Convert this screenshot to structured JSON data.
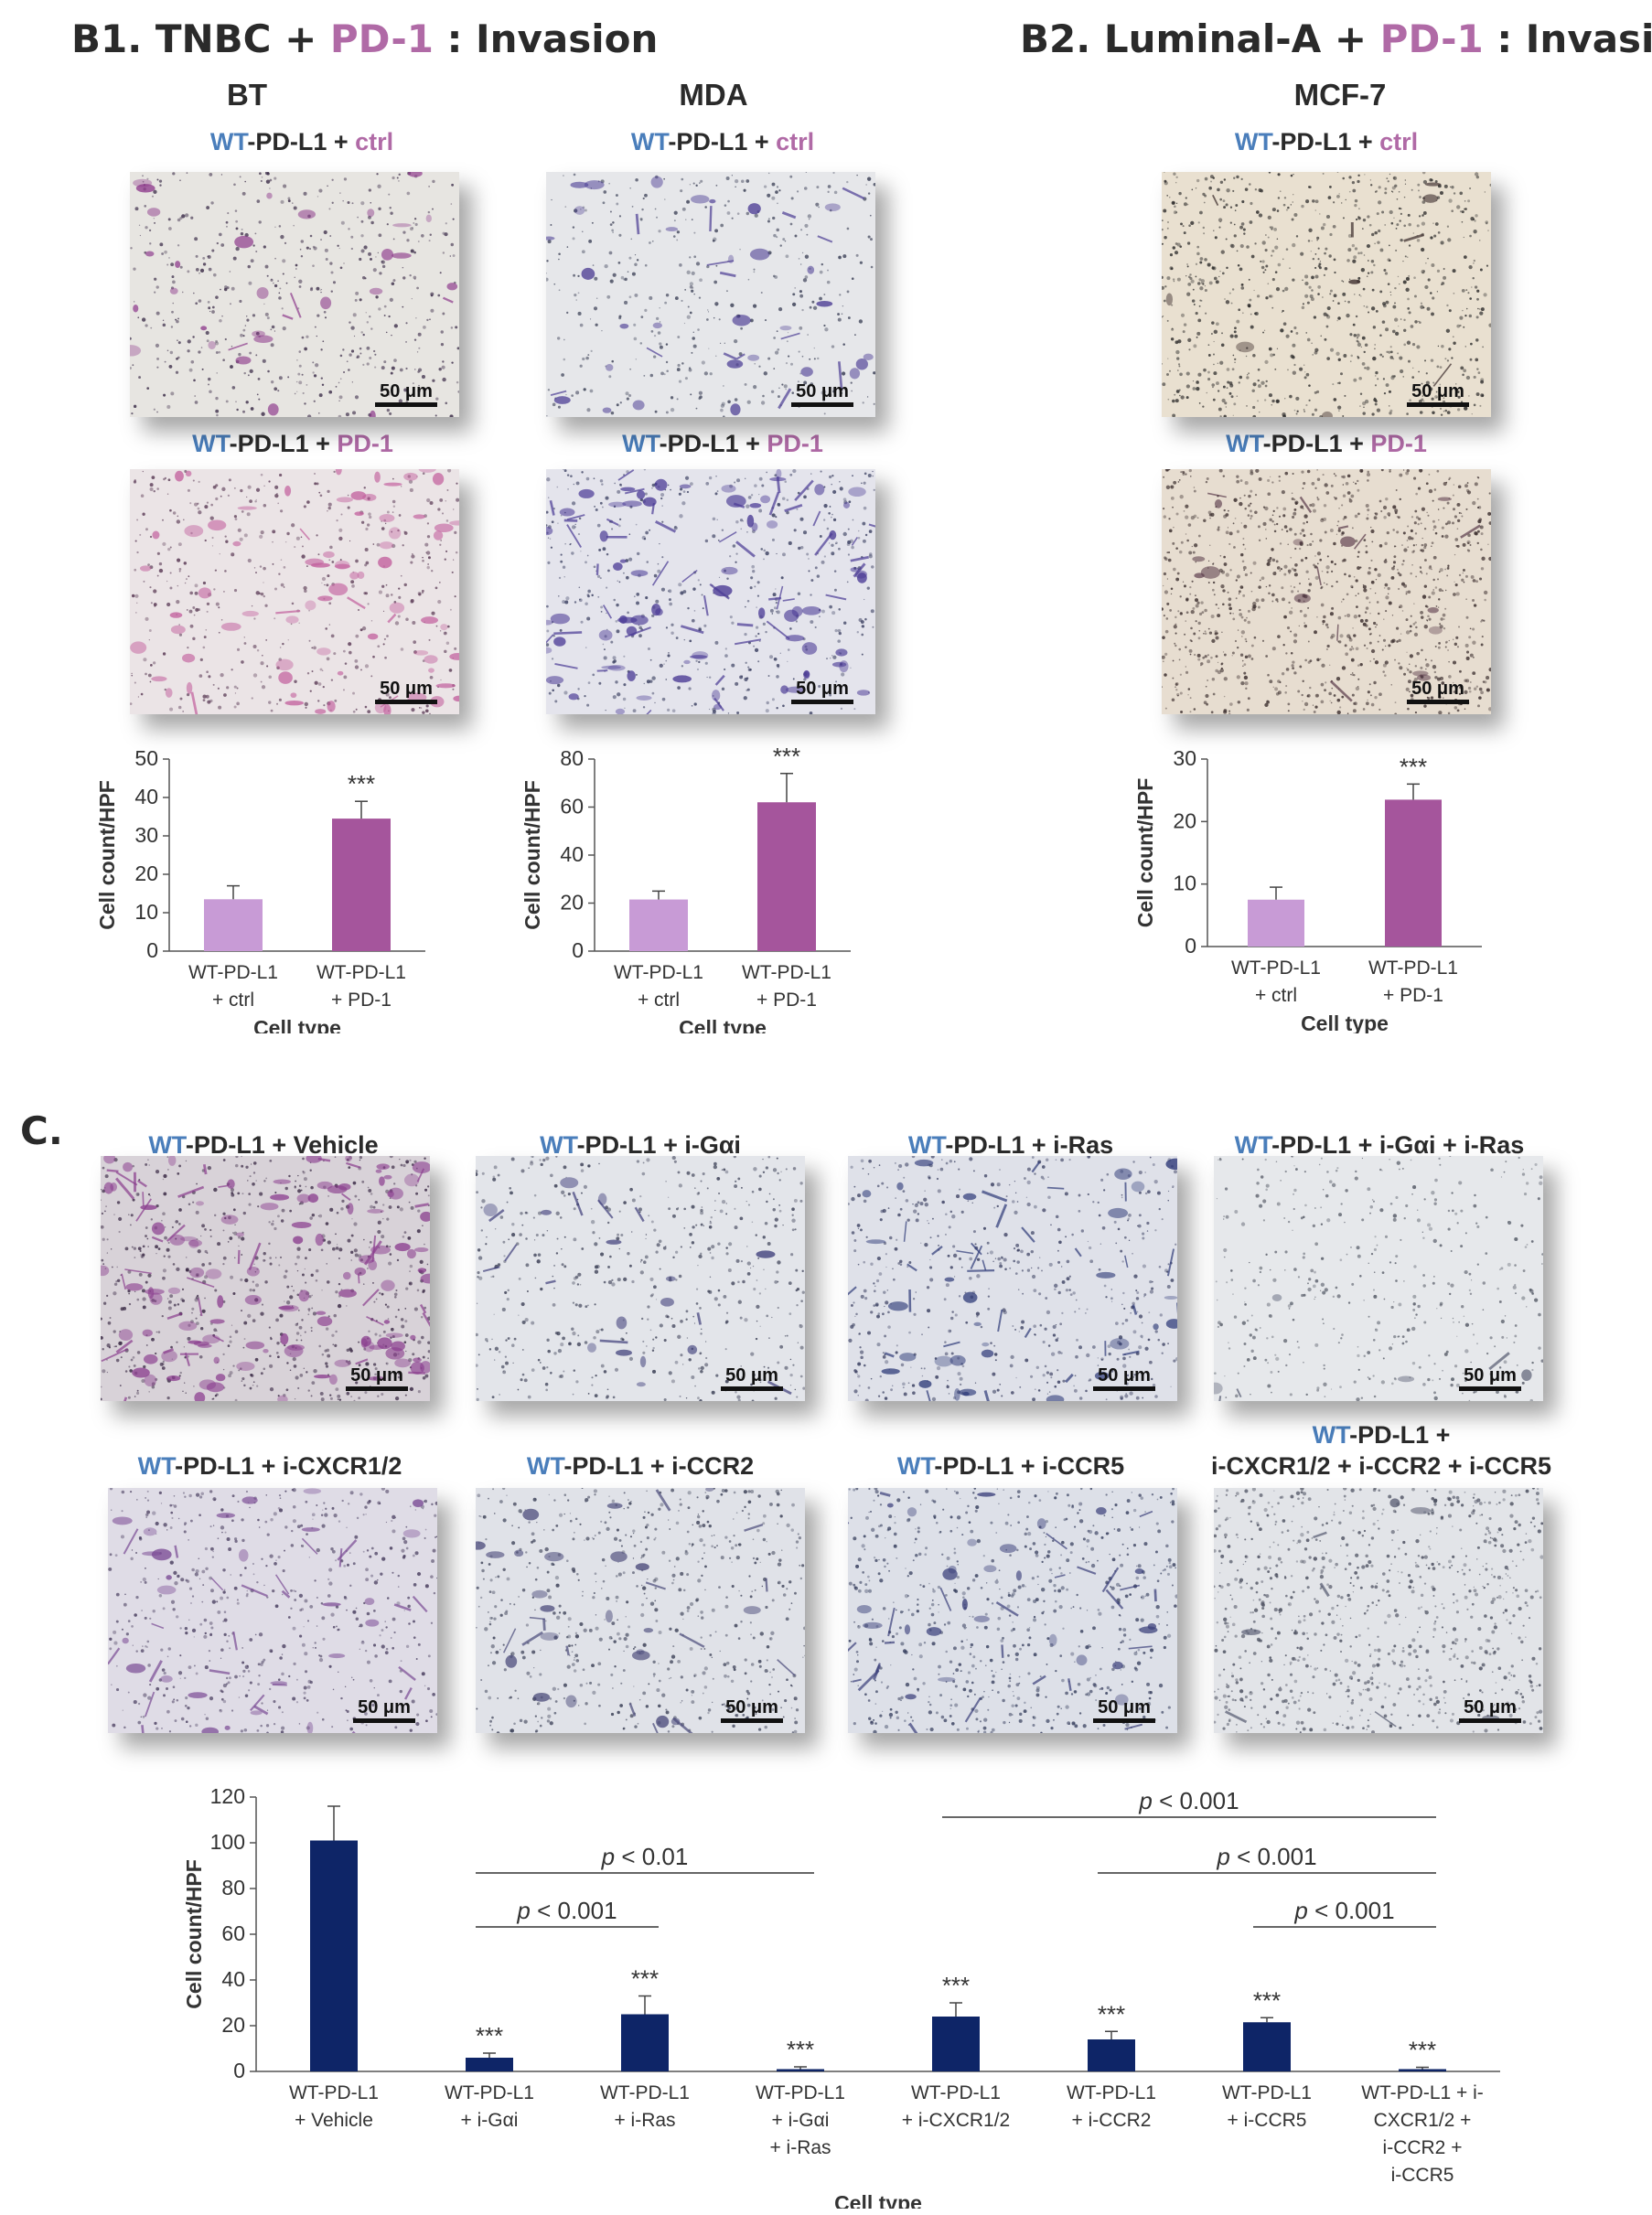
{
  "panels": {
    "b1": {
      "prefix": "B1. TNBC + ",
      "highlight": "PD-1",
      "suffix": " : Invasion"
    },
    "b2": {
      "prefix": "B2. Luminal-A + ",
      "highlight": "PD-1",
      "suffix": " : Invasion"
    },
    "c": {
      "label": "C."
    }
  },
  "columns": {
    "bt": "BT",
    "mda": "MDA",
    "mcf7": "MCF-7"
  },
  "labels": {
    "wt": "WT",
    "pdl1": "-PD-L1 + ",
    "ctrl": "ctrl",
    "pd1": "PD-1",
    "vehicle": "-PD-L1 + Vehicle",
    "igai": "-PD-L1 + i-Gαi",
    "iras": "-PD-L1 + i-Ras",
    "igai_iras": "-PD-L1 + i-Gαi + i-Ras",
    "icxcr": "-PD-L1 + i-CXCR1/2",
    "iccr2": "-PD-L1 + i-CCR2",
    "iccr5": "-PD-L1 + i-CCR5",
    "combo_line1": "-PD-L1 +",
    "combo_line2": "i-CXCR1/2 + i-CCR2 + i-CCR5"
  },
  "scale_bar": "50 μm",
  "colors": {
    "light_purple": "#c89bd6",
    "dark_purple": "#a5559c",
    "navy": "#0e2567",
    "wt_blue": "#4a7ebb",
    "pd1_purple": "#b06aa6"
  },
  "chart_data": [
    {
      "id": "bt",
      "type": "bar",
      "categories": [
        [
          "WT-PD-L1",
          "+ ctrl"
        ],
        [
          "WT-PD-L1",
          "+ PD-1"
        ]
      ],
      "values": [
        13.5,
        34.5
      ],
      "errors": [
        3.5,
        4.5
      ],
      "colors": [
        "#c89bd6",
        "#a5559c"
      ],
      "significance": [
        "",
        "***"
      ],
      "ylabel": "Cell count/HPF",
      "xlabel": "Cell type",
      "ylim": [
        0,
        50
      ],
      "yticks": [
        0,
        10,
        20,
        30,
        40,
        50
      ]
    },
    {
      "id": "mda",
      "type": "bar",
      "categories": [
        [
          "WT-PD-L1",
          "+ ctrl"
        ],
        [
          "WT-PD-L1",
          "+ PD-1"
        ]
      ],
      "values": [
        21.5,
        62
      ],
      "errors": [
        3.5,
        12
      ],
      "colors": [
        "#c89bd6",
        "#a5559c"
      ],
      "significance": [
        "",
        "***"
      ],
      "ylabel": "Cell count/HPF",
      "xlabel": "Cell type",
      "ylim": [
        0,
        80
      ],
      "yticks": [
        0,
        20,
        40,
        60,
        80
      ]
    },
    {
      "id": "mcf7",
      "type": "bar",
      "categories": [
        [
          "WT-PD-L1",
          "+ ctrl"
        ],
        [
          "WT-PD-L1",
          "+ PD-1"
        ]
      ],
      "values": [
        7.5,
        23.5
      ],
      "errors": [
        2,
        2.5
      ],
      "colors": [
        "#c89bd6",
        "#a5559c"
      ],
      "significance": [
        "",
        "***"
      ],
      "ylabel": "Cell count/HPF",
      "xlabel": "Cell type",
      "ylim": [
        0,
        30
      ],
      "yticks": [
        0,
        10,
        20,
        30
      ]
    },
    {
      "id": "c",
      "type": "bar",
      "categories": [
        [
          "WT-PD-L1",
          "+ Vehicle"
        ],
        [
          "WT-PD-L1",
          "+ i-Gαi"
        ],
        [
          "WT-PD-L1",
          "+ i-Ras"
        ],
        [
          "WT-PD-L1",
          "+ i-Gαi",
          "+ i-Ras"
        ],
        [
          "WT-PD-L1",
          "+ i-CXCR1/2"
        ],
        [
          "WT-PD-L1",
          "+ i-CCR2"
        ],
        [
          "WT-PD-L1",
          "+ i-CCR5"
        ],
        [
          "WT-PD-L1 + i-",
          "CXCR1/2 +",
          "i-CCR2 +",
          "i-CCR5"
        ]
      ],
      "values": [
        101,
        6,
        25,
        1,
        24,
        14,
        21.5,
        1
      ],
      "errors": [
        15,
        2,
        8,
        1,
        6,
        3.5,
        2,
        0.8
      ],
      "colors": [
        "#0e2567",
        "#0e2567",
        "#0e2567",
        "#0e2567",
        "#0e2567",
        "#0e2567",
        "#0e2567",
        "#0e2567"
      ],
      "significance": [
        "",
        "***",
        "***",
        "***",
        "***",
        "***",
        "***",
        "***"
      ],
      "ylabel": "Cell count/HPF",
      "xlabel": "Cell type",
      "ylim": [
        0,
        120
      ],
      "yticks": [
        0,
        20,
        40,
        60,
        80,
        100,
        120
      ],
      "comparisons": [
        {
          "from": 4,
          "to": 7,
          "label": "< 0.001",
          "p": "p"
        },
        {
          "from": 1,
          "to": 3,
          "label": "< 0.01",
          "p": "p"
        },
        {
          "from": 5,
          "to": 7,
          "label": "< 0.001",
          "p": "p"
        },
        {
          "from": 1,
          "to": 2,
          "label": "< 0.001",
          "p": "p"
        },
        {
          "from": 6,
          "to": 7,
          "label": "< 0.001",
          "p": "p"
        }
      ]
    }
  ]
}
